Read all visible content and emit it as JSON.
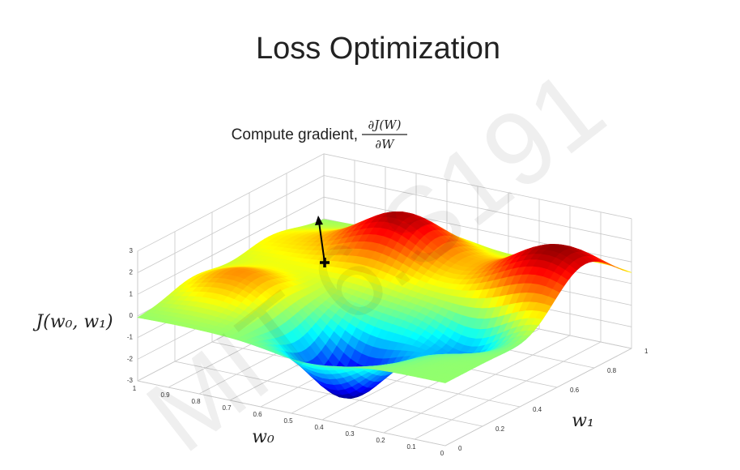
{
  "title": "Loss Optimization",
  "watermark": "MIT 6.S191",
  "subtitle": {
    "text": "Compute gradient,",
    "numerator": "∂J(W)",
    "denominator": "∂W"
  },
  "axes": {
    "z_label": "J(w₀, w₁)",
    "z_ticks": [
      3,
      2,
      1,
      0,
      -1,
      -2,
      -3
    ],
    "w0_label": "w₀",
    "w0_ticks": [
      1,
      0.9,
      0.8,
      0.7,
      0.6,
      0.5,
      0.4,
      0.3,
      0.2,
      0.1,
      0
    ],
    "w1_label": "w₁",
    "w1_ticks": [
      0,
      0.2,
      0.4,
      0.6,
      0.8,
      1
    ]
  }
}
